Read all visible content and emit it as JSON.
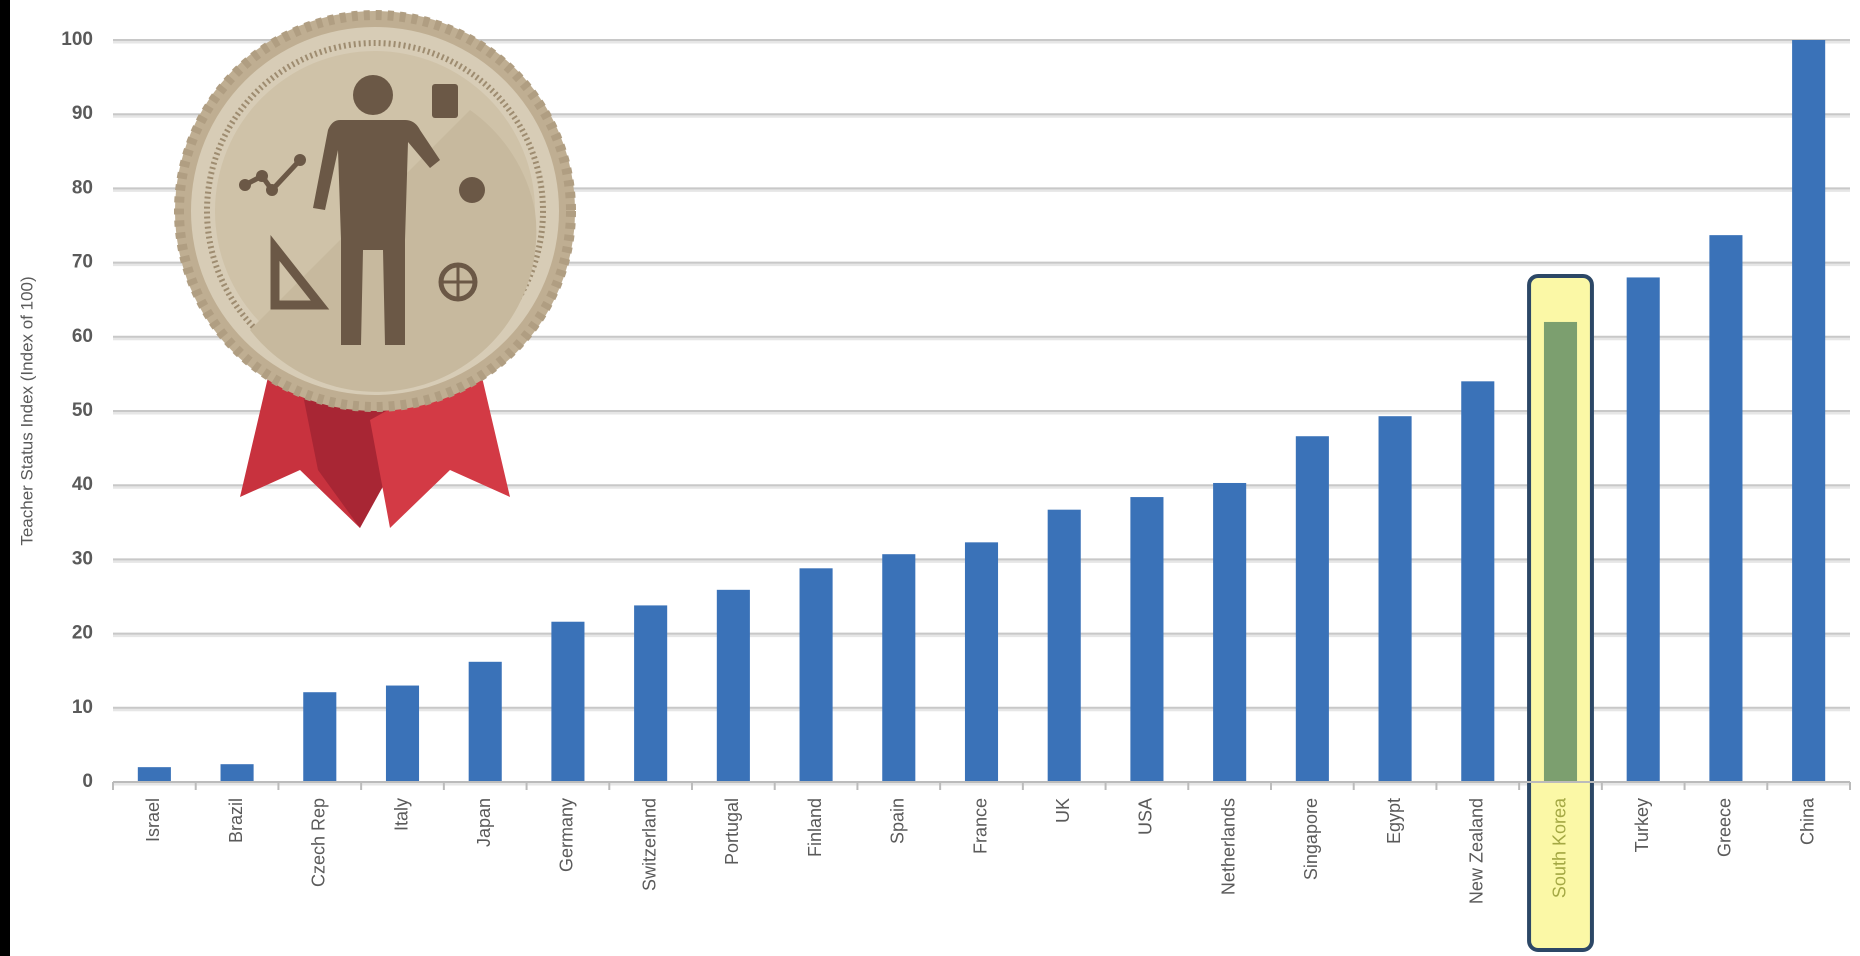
{
  "chart_data": {
    "type": "bar",
    "y_label": "Teacher Status Index (Index of 100)",
    "categories": [
      "Israel",
      "Brazil",
      "Czech Rep",
      "Italy",
      "Japan",
      "Germany",
      "Switzerland",
      "Portugal",
      "Finland",
      "Spain",
      "France",
      "UK",
      "USA",
      "Netherlands",
      "Singapore",
      "Egypt",
      "New Zealand",
      "South Korea",
      "Turkey",
      "Greece",
      "China"
    ],
    "values": [
      2,
      2.4,
      12.1,
      13,
      16.2,
      21.6,
      23.8,
      25.9,
      28.8,
      30.7,
      32.3,
      36.7,
      38.4,
      40.3,
      46.6,
      49.3,
      54,
      62,
      68,
      73.7,
      100
    ],
    "color": "#3a72b8",
    "highlight": {
      "index": 17,
      "color": "#7c9f6f",
      "fill": "#fbf8a6",
      "border": "#2c4766",
      "label_color": "#a4a844"
    },
    "ylim": [
      0,
      100
    ],
    "yticks": [
      0,
      10,
      20,
      30,
      40,
      50,
      60,
      70,
      80,
      90,
      100
    ],
    "grid": true
  }
}
